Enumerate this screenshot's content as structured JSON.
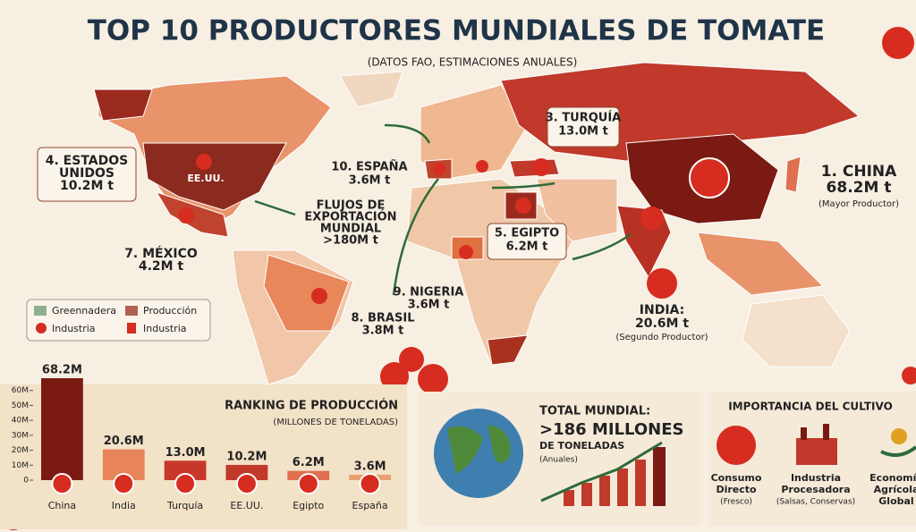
{
  "header": {
    "title": "TOP 10 PRODUCTORES MUNDIALES DE TOMATE",
    "subtitle": "(DATOS FAO, ESTIMACIONES ANUALES)"
  },
  "map_labels": {
    "usa": [
      "4. ESTADOS",
      "UNIDOS",
      "10.2M t"
    ],
    "usa_tag": "EE.UU.",
    "mexico": [
      "7. MÉXICO",
      "4.2M t"
    ],
    "spain": [
      "10. ESPAÑA",
      "3.6M t"
    ],
    "flows": [
      "FLUJOS DE",
      "EXPORTACIÓN",
      "MUNDIAL",
      ">180M t"
    ],
    "turkey": [
      "3. TURQUÍA",
      "13.0M t"
    ],
    "egypt": [
      "5. EGIPTO",
      "6.2M t"
    ],
    "china": [
      "1. CHINA",
      "68.2M t",
      "(Mayor Productor)"
    ],
    "india": [
      "INDIA:",
      "20.6M t",
      "(Segundo Productor)"
    ],
    "nigeria": [
      "9. NIGERIA",
      "3.6M t"
    ],
    "brazil": [
      "8. BRASIL",
      "3.8M t"
    ]
  },
  "legend": [
    "Greennadera",
    "Producción",
    "Industria",
    "Industria"
  ],
  "chart_data": {
    "type": "bar",
    "title": "RANKING DE PRODUCCIÓN",
    "subtitle": "(MILLONES DE TONELADAS)",
    "categories": [
      "China",
      "India",
      "Turquía",
      "EE.UU.",
      "Egipto",
      "España"
    ],
    "values": [
      68.2,
      20.6,
      13.0,
      10.2,
      6.2,
      3.6
    ],
    "value_labels": [
      "68.2M",
      "20.6M",
      "13.0M",
      "10.2M",
      "6.2M",
      "3.6M"
    ],
    "colors": [
      "#7a1a12",
      "#e8845a",
      "#c8382a",
      "#c0392b",
      "#e07050",
      "#e8a070"
    ],
    "ylim": [
      0,
      70
    ],
    "yticks": [
      {
        "value": 0,
        "label": "0"
      },
      {
        "value": 10,
        "label": "10M"
      },
      {
        "value": 20,
        "label": "20M"
      },
      {
        "value": 30,
        "label": "30M"
      },
      {
        "value": 40,
        "label": "40M"
      },
      {
        "value": 50,
        "label": "50M"
      },
      {
        "value": 60,
        "label": "60M"
      }
    ]
  },
  "total": {
    "heading": "TOTAL MUNDIAL:",
    "amount": ">186 MILLONES",
    "unit": "DE TONELADAS",
    "note": "(Anuales)"
  },
  "importance": {
    "title": "IMPORTANCIA DEL CULTIVO",
    "items": [
      {
        "name": [
          "Consumo",
          "Directo"
        ],
        "note": "(Fresco)"
      },
      {
        "name": [
          "Industria",
          "Procesadora"
        ],
        "note": "(Salsas, Conservas)"
      },
      {
        "name": [
          "Economía",
          "Agrícola",
          "Global"
        ]
      }
    ]
  }
}
